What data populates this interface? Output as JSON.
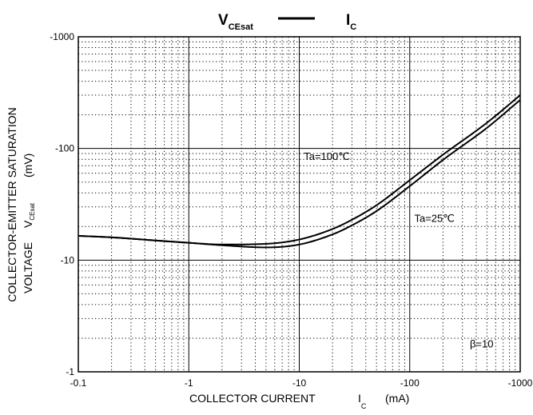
{
  "chart_data": {
    "type": "line",
    "title": {
      "left_main": "V",
      "left_sub": "CEsat",
      "right_main": "I",
      "right_sub": "C"
    },
    "xlabel": {
      "text": "COLLECTOR CURRENT",
      "symbol": "I",
      "symbol_sub": "C",
      "unit": "(mA)"
    },
    "ylabel": {
      "line1": "COLLECTOR-EMITTER SATURATION",
      "line2_text": "VOLTAGE",
      "symbol": "V",
      "symbol_sub": "CEsat",
      "unit": "(mV)"
    },
    "x_scale": "log",
    "y_scale": "log",
    "xlim": [
      0.1,
      1000
    ],
    "ylim": [
      1,
      1000
    ],
    "x_ticks": [
      {
        "value": 0.1,
        "label": "-0.1"
      },
      {
        "value": 1,
        "label": "-1"
      },
      {
        "value": 10,
        "label": "-10"
      },
      {
        "value": 100,
        "label": "-100"
      },
      {
        "value": 1000,
        "label": "-1000"
      }
    ],
    "y_ticks": [
      {
        "value": 1,
        "label": "-1"
      },
      {
        "value": 10,
        "label": "-10"
      },
      {
        "value": 100,
        "label": "-100"
      },
      {
        "value": 1000,
        "label": "-1000"
      }
    ],
    "grid": {
      "major": "solid",
      "minor": "dotted"
    },
    "series": [
      {
        "name": "Ta=100℃",
        "x": [
          0.1,
          0.2,
          0.5,
          1,
          2,
          5,
          10,
          20,
          30,
          50,
          100,
          200,
          500,
          1000
        ],
        "y": [
          16.5,
          16,
          15,
          14.3,
          13.8,
          14,
          15.3,
          19,
          23,
          31,
          52,
          88,
          170,
          300
        ]
      },
      {
        "name": "Ta=25℃",
        "x": [
          0.1,
          0.2,
          0.5,
          1,
          2,
          5,
          10,
          20,
          30,
          50,
          100,
          200,
          500,
          1000
        ],
        "y": [
          16.5,
          16,
          15,
          14.3,
          13.6,
          13,
          13.8,
          17,
          20.5,
          27.5,
          46,
          79,
          153,
          272
        ]
      }
    ],
    "annotations": [
      {
        "text": "Ta=100℃",
        "x": 11,
        "y": 79
      },
      {
        "text": "Ta=25℃",
        "x": 110,
        "y": 22
      },
      {
        "text": "β=10",
        "x": 350,
        "y": 1.65
      }
    ],
    "colors": {
      "line": "#000000",
      "grid": "#000000"
    }
  }
}
